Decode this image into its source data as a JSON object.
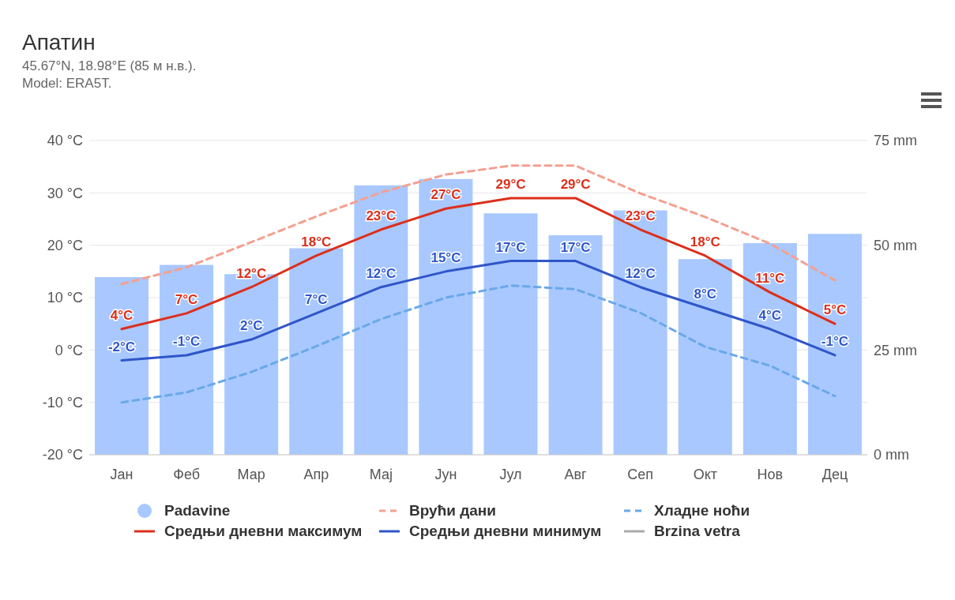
{
  "chart_data": {
    "type": "line",
    "title": "Апатин",
    "subtitle": "45.67°N, 18.98°E (85 м н.в.).",
    "annotations": [
      "Model: ERA5T."
    ],
    "categories": [
      "Јан",
      "Феб",
      "Мар",
      "Апр",
      "Мај",
      "Јун",
      "Јул",
      "Авг",
      "Сеп",
      "Окт",
      "Нов",
      "Дец"
    ],
    "series": [
      {
        "name": "Padavine",
        "type": "bar",
        "axis": "y2",
        "color": "#a8c8ff",
        "values": [
          42.4,
          45.3,
          43.1,
          49.3,
          64.3,
          65.8,
          57.6,
          52.4,
          58.3,
          46.7,
          50.5,
          52.7
        ]
      },
      {
        "name": "Врући дани",
        "line_style": "dashed",
        "color": "#f4a090",
        "values": [
          12.6,
          15.8,
          20.6,
          25.5,
          30.1,
          33.5,
          35.2,
          35.2,
          29.9,
          25.4,
          20.3,
          13.3
        ]
      },
      {
        "name": "Хладне ноћи",
        "line_style": "dashed",
        "color": "#6aa8e8",
        "values": [
          -10,
          -8.1,
          -4.2,
          0.7,
          5.9,
          10,
          12.3,
          11.6,
          7.1,
          0.6,
          -3,
          -8.8
        ]
      },
      {
        "name": "Средњи дневни максимум",
        "line_style": "solid",
        "color": "#dd2e1a",
        "values": [
          4,
          7,
          12,
          18,
          23,
          27,
          29,
          29,
          23,
          18,
          11,
          5
        ],
        "value_labels": [
          "4°C",
          "7°C",
          "12°C",
          "18°C",
          "23°C",
          "27°C",
          "29°C",
          "29°C",
          "23°C",
          "18°C",
          "11°C",
          "5°C"
        ]
      },
      {
        "name": "Средњи дневни минимум",
        "line_style": "solid",
        "color": "#2f55c8",
        "values": [
          -2,
          -1,
          2,
          7,
          12,
          15,
          17,
          17,
          12,
          8,
          4,
          -1
        ],
        "value_labels": [
          "-2°C",
          "-1°C",
          "2°C",
          "7°C",
          "12°C",
          "15°C",
          "17°C",
          "17°C",
          "12°C",
          "8°C",
          "4°C",
          "-1°C"
        ]
      },
      {
        "name": "Brzina vetra",
        "line_style": "solid",
        "color": "#aaaaaa",
        "values": [
          null,
          null,
          null,
          null,
          null,
          null,
          null,
          null,
          null,
          null,
          null,
          null
        ]
      }
    ],
    "ylim": [
      -20,
      40
    ],
    "yticks": [
      {
        "value": -20,
        "label": "-20 °C"
      },
      {
        "value": -10,
        "label": "-10 °C"
      },
      {
        "value": 0,
        "label": "0 °C"
      },
      {
        "value": 10,
        "label": "10 °C"
      },
      {
        "value": 20,
        "label": "20 °C"
      },
      {
        "value": 30,
        "label": "30 °C"
      },
      {
        "value": 40,
        "label": "40 °C"
      }
    ],
    "y2lim": [
      0,
      75
    ],
    "y2ticks": [
      {
        "value": 0,
        "label": "0 mm"
      },
      {
        "value": 25,
        "label": "25 mm"
      },
      {
        "value": 50,
        "label": "50 mm"
      },
      {
        "value": 75,
        "label": "75 mm"
      }
    ],
    "grid": "y",
    "legend": "bottom",
    "marker": "none"
  }
}
